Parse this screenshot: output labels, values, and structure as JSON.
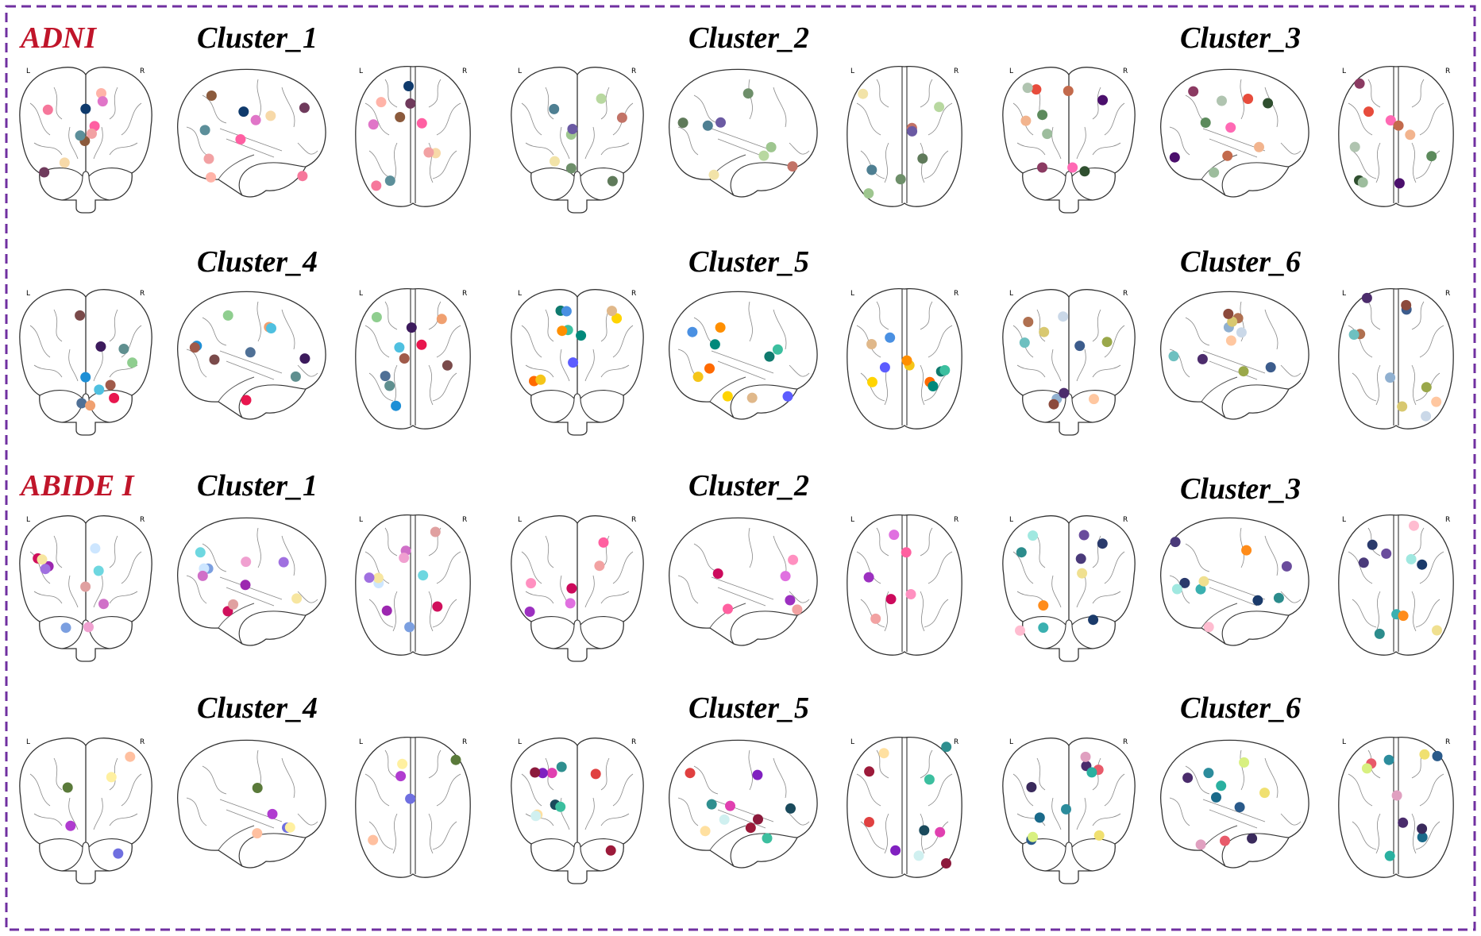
{
  "datasets": [
    {
      "label": "ADNI",
      "clusters": [
        {
          "title": "Cluster_1",
          "colors": [
            "#8b5a3c",
            "#f6779b",
            "#5c8f9a",
            "#6f3a5c",
            "#ff5fa2",
            "#f7d9a8",
            "#ffb3a8",
            "#0f3a6c",
            "#e075c8",
            "#f2a1a3"
          ]
        },
        {
          "title": "Cluster_2",
          "colors": [
            "#c27367",
            "#9ec68f",
            "#6e8f6a",
            "#6b5aa3",
            "#4e7f92",
            "#b8d8a0",
            "#f2e3a8",
            "#5f7a5a"
          ]
        },
        {
          "title": "Cluster_3",
          "colors": [
            "#2f4f2f",
            "#8b3a62",
            "#e74c3c",
            "#b0c4b0",
            "#ff69b4",
            "#4b0f6c",
            "#c36a4c",
            "#9dbd9d",
            "#f2b48e",
            "#5c8a5c"
          ]
        },
        {
          "title": "Cluster_4",
          "colors": [
            "#4f7096",
            "#5f8f8f",
            "#1d8fd6",
            "#e8164e",
            "#f0a070",
            "#4fc0e0",
            "#7a4a4a",
            "#8fce8f",
            "#3c1a5c",
            "#a05a4a"
          ]
        },
        {
          "title": "Cluster_5",
          "colors": [
            "#0f7a6e",
            "#ff6a00",
            "#5c5cff",
            "#ffd400",
            "#3cbf9f",
            "#4a90e2",
            "#f5c518",
            "#e0b88a",
            "#00897b",
            "#ff8f00"
          ]
        },
        {
          "title": "Cluster_6",
          "colors": [
            "#3c5c8c",
            "#b07050",
            "#90b0d0",
            "#ffc7a0",
            "#4c2c6c",
            "#cad8e8",
            "#9aa84a",
            "#d8c870",
            "#6ec0c0",
            "#8c4a3c"
          ]
        }
      ]
    },
    {
      "label": "ABIDE I",
      "clusters": [
        {
          "title": "Cluster_1",
          "colors": [
            "#6ed7e0",
            "#7b9fe0",
            "#cde6ff",
            "#d070c8",
            "#d0105c",
            "#9c27b0",
            "#f7e6a0",
            "#e0a0a0",
            "#f0a0d0",
            "#a070e0"
          ]
        },
        {
          "title": "Cluster_2",
          "colors": [
            "#f2a2a2",
            "#ff90c0",
            "#cc0a5c",
            "#9c30c0",
            "#e070e0",
            "#ff60a0"
          ]
        },
        {
          "title": "Cluster_3",
          "colors": [
            "#ffbcd0",
            "#4a3a7a",
            "#3ab0b0",
            "#ff8c1a",
            "#f0e090",
            "#2a3a6c",
            "#a0e8e0",
            "#1a3a6a",
            "#6a4c9c",
            "#2c8c8c"
          ]
        },
        {
          "title": "Cluster_4",
          "colors": [
            "#ffc0a0",
            "#5a7a3a",
            "#6f6fe0",
            "#fff0a0",
            "#b03cd0"
          ]
        },
        {
          "title": "Cluster_5",
          "colors": [
            "#e040b0",
            "#8020c0",
            "#1a4a5c",
            "#2f8f8f",
            "#e04040",
            "#8c1a3c",
            "#ffe0a0",
            "#3cbf9f",
            "#d0f0f0",
            "#9c1a3a"
          ]
        },
        {
          "title": "Cluster_6",
          "colors": [
            "#e85a6a",
            "#2a5a8a",
            "#f0e070",
            "#2c8c9c",
            "#4a2c6c",
            "#2ab0a0",
            "#d8f080",
            "#e0a0c0",
            "#1a6a8a",
            "#3a2a5c"
          ]
        }
      ]
    }
  ],
  "view_labels": {
    "left": "L",
    "right": "R"
  }
}
